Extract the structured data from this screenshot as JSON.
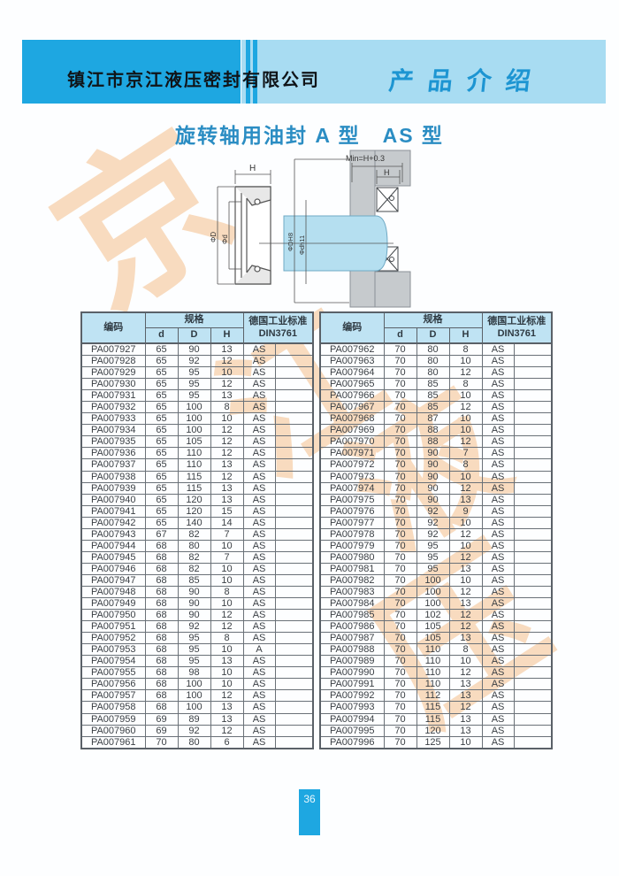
{
  "header": {
    "company": "镇江市京江液压密封有限公司",
    "section": "产品介绍"
  },
  "title": "旋转轴用油封 A 型　AS 型",
  "watermark": {
    "chars": [
      "京",
      "江",
      "液",
      "压"
    ],
    "color": "#f4be8a"
  },
  "diagram": {
    "h_label": "H",
    "min_label": "Min=H+0.3",
    "phi_D": "ΦD",
    "phi_d": "Φd",
    "phi_DH8": "ΦDH8",
    "phi_dh11": "Φdh11",
    "shaft_color": "#b5dff0",
    "housing_color": "#c6cacd"
  },
  "table_headers": {
    "code": "编码",
    "spec": "规格",
    "d": "d",
    "D": "D",
    "H": "H",
    "std_line1": "德国工业标准",
    "std_line2": "DIN3761"
  },
  "left_rows": [
    [
      "PA007927",
      "65",
      "90",
      "13",
      "AS"
    ],
    [
      "PA007928",
      "65",
      "92",
      "12",
      "AS"
    ],
    [
      "PA007929",
      "65",
      "95",
      "10",
      "AS"
    ],
    [
      "PA007930",
      "65",
      "95",
      "12",
      "AS"
    ],
    [
      "PA007931",
      "65",
      "95",
      "13",
      "AS"
    ],
    [
      "PA007932",
      "65",
      "100",
      "8",
      "AS"
    ],
    [
      "PA007933",
      "65",
      "100",
      "10",
      "AS"
    ],
    [
      "PA007934",
      "65",
      "100",
      "12",
      "AS"
    ],
    [
      "PA007935",
      "65",
      "105",
      "12",
      "AS"
    ],
    [
      "PA007936",
      "65",
      "110",
      "12",
      "AS"
    ],
    [
      "PA007937",
      "65",
      "110",
      "13",
      "AS"
    ],
    [
      "PA007938",
      "65",
      "115",
      "12",
      "AS"
    ],
    [
      "PA007939",
      "65",
      "115",
      "13",
      "AS"
    ],
    [
      "PA007940",
      "65",
      "120",
      "13",
      "AS"
    ],
    [
      "PA007941",
      "65",
      "120",
      "15",
      "AS"
    ],
    [
      "PA007942",
      "65",
      "140",
      "14",
      "AS"
    ],
    [
      "PA007943",
      "67",
      "82",
      "7",
      "AS"
    ],
    [
      "PA007944",
      "68",
      "80",
      "10",
      "AS"
    ],
    [
      "PA007945",
      "68",
      "82",
      "7",
      "AS"
    ],
    [
      "PA007946",
      "68",
      "82",
      "10",
      "AS"
    ],
    [
      "PA007947",
      "68",
      "85",
      "10",
      "AS"
    ],
    [
      "PA007948",
      "68",
      "90",
      "8",
      "AS"
    ],
    [
      "PA007949",
      "68",
      "90",
      "10",
      "AS"
    ],
    [
      "PA007950",
      "68",
      "90",
      "12",
      "AS"
    ],
    [
      "PA007951",
      "68",
      "92",
      "12",
      "AS"
    ],
    [
      "PA007952",
      "68",
      "95",
      "8",
      "AS"
    ],
    [
      "PA007953",
      "68",
      "95",
      "10",
      "A"
    ],
    [
      "PA007954",
      "68",
      "95",
      "13",
      "AS"
    ],
    [
      "PA007955",
      "68",
      "98",
      "10",
      "AS"
    ],
    [
      "PA007956",
      "68",
      "100",
      "10",
      "AS"
    ],
    [
      "PA007957",
      "68",
      "100",
      "12",
      "AS"
    ],
    [
      "PA007958",
      "68",
      "100",
      "13",
      "AS"
    ],
    [
      "PA007959",
      "69",
      "89",
      "13",
      "AS"
    ],
    [
      "PA007960",
      "69",
      "92",
      "12",
      "AS"
    ],
    [
      "PA007961",
      "70",
      "80",
      "6",
      "AS"
    ]
  ],
  "right_rows": [
    [
      "PA007962",
      "70",
      "80",
      "8",
      "AS"
    ],
    [
      "PA007963",
      "70",
      "80",
      "10",
      "AS"
    ],
    [
      "PA007964",
      "70",
      "80",
      "12",
      "AS"
    ],
    [
      "PA007965",
      "70",
      "85",
      "8",
      "AS"
    ],
    [
      "PA007966",
      "70",
      "85",
      "10",
      "AS"
    ],
    [
      "PA007967",
      "70",
      "85",
      "12",
      "AS"
    ],
    [
      "PA007968",
      "70",
      "87",
      "10",
      "AS"
    ],
    [
      "PA007969",
      "70",
      "88",
      "10",
      "AS"
    ],
    [
      "PA007970",
      "70",
      "88",
      "12",
      "AS"
    ],
    [
      "PA007971",
      "70",
      "90",
      "7",
      "AS"
    ],
    [
      "PA007972",
      "70",
      "90",
      "8",
      "AS"
    ],
    [
      "PA007973",
      "70",
      "90",
      "10",
      "AS"
    ],
    [
      "PA007974",
      "70",
      "90",
      "12",
      "AS"
    ],
    [
      "PA007975",
      "70",
      "90",
      "13",
      "AS"
    ],
    [
      "PA007976",
      "70",
      "92",
      "9",
      "AS"
    ],
    [
      "PA007977",
      "70",
      "92",
      "10",
      "AS"
    ],
    [
      "PA007978",
      "70",
      "92",
      "12",
      "AS"
    ],
    [
      "PA007979",
      "70",
      "95",
      "10",
      "AS"
    ],
    [
      "PA007980",
      "70",
      "95",
      "12",
      "AS"
    ],
    [
      "PA007981",
      "70",
      "95",
      "13",
      "AS"
    ],
    [
      "PA007982",
      "70",
      "100",
      "10",
      "AS"
    ],
    [
      "PA007983",
      "70",
      "100",
      "12",
      "AS"
    ],
    [
      "PA007984",
      "70",
      "100",
      "13",
      "AS"
    ],
    [
      "PA007985",
      "70",
      "102",
      "12",
      "AS"
    ],
    [
      "PA007986",
      "70",
      "105",
      "12",
      "AS"
    ],
    [
      "PA007987",
      "70",
      "105",
      "13",
      "AS"
    ],
    [
      "PA007988",
      "70",
      "110",
      "8",
      "AS"
    ],
    [
      "PA007989",
      "70",
      "110",
      "10",
      "AS"
    ],
    [
      "PA007990",
      "70",
      "110",
      "12",
      "AS"
    ],
    [
      "PA007991",
      "70",
      "110",
      "13",
      "AS"
    ],
    [
      "PA007992",
      "70",
      "112",
      "13",
      "AS"
    ],
    [
      "PA007993",
      "70",
      "115",
      "12",
      "AS"
    ],
    [
      "PA007994",
      "70",
      "115",
      "13",
      "AS"
    ],
    [
      "PA007995",
      "70",
      "120",
      "13",
      "AS"
    ],
    [
      "PA007996",
      "70",
      "125",
      "10",
      "AS"
    ]
  ],
  "footer": {
    "page": "36"
  }
}
